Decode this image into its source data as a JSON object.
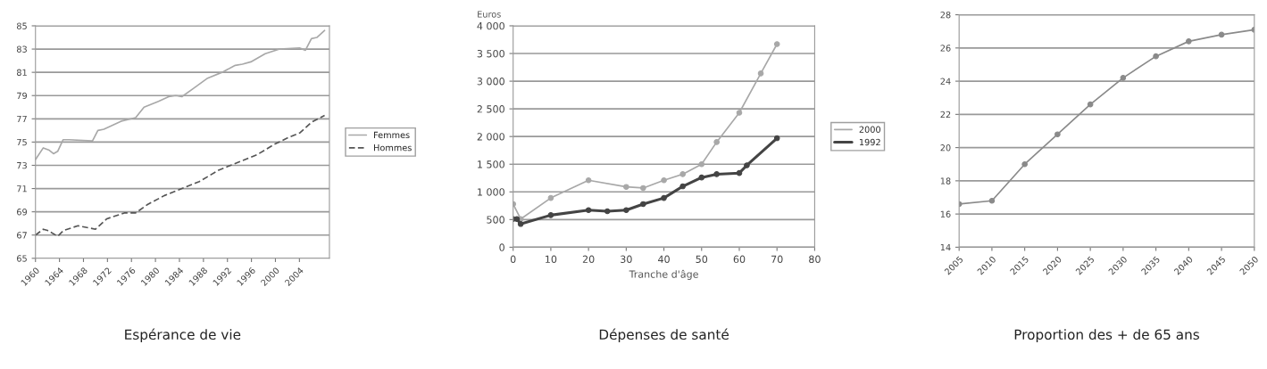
{
  "chart_data": [
    {
      "type": "line",
      "title": "Espérance de vie",
      "xlim": [
        1960,
        2009
      ],
      "ylim": [
        65,
        85
      ],
      "xticks": [
        1960,
        1964,
        1968,
        1972,
        1976,
        1980,
        1984,
        1988,
        1992,
        1996,
        2000,
        2004
      ],
      "yticks": [
        65,
        67,
        69,
        71,
        73,
        75,
        77,
        79,
        81,
        83,
        85
      ],
      "grid": "y",
      "legend": "right",
      "series": [
        {
          "name": "Femmes",
          "color": "#a8a8a8",
          "line_style": "solid",
          "x": [
            1960,
            1961.3,
            1962.3,
            1963,
            1963.7,
            1964.6,
            1965.6,
            1969.5,
            1970.4,
            1971.4,
            1974.3,
            1976.7,
            1978.1,
            1980.5,
            1982.2,
            1983.4,
            1984.4,
            1986.3,
            1988.7,
            1991.1,
            1993.3,
            1994.5,
            1995.9,
            1998.3,
            2000.7,
            2004,
            2005,
            2006,
            2006.9,
            2008.2
          ],
          "values": [
            73.5,
            74.5,
            74.3,
            74.0,
            74.2,
            75.2,
            75.2,
            75.1,
            76.0,
            76.1,
            76.8,
            77.1,
            78.0,
            78.5,
            78.9,
            79.0,
            78.9,
            79.6,
            80.5,
            81.0,
            81.6,
            81.7,
            81.9,
            82.6,
            83.0,
            83.1,
            82.9,
            83.9,
            84.0,
            84.6
          ]
        },
        {
          "name": "Hommes",
          "color": "#555555",
          "line_style": "dashed",
          "x": [
            1960,
            1961.3,
            1962,
            1963.7,
            1964.7,
            1967.1,
            1970,
            1971.9,
            1974.8,
            1976.7,
            1978.6,
            1981.5,
            1984.9,
            1987.3,
            1990.6,
            1994,
            1996.9,
            1999.8,
            2002.2,
            2004.1,
            2006,
            2008.2
          ],
          "values": [
            67.0,
            67.5,
            67.4,
            66.9,
            67.4,
            67.8,
            67.5,
            68.4,
            68.9,
            68.9,
            69.6,
            70.4,
            71.1,
            71.6,
            72.6,
            73.3,
            73.9,
            74.8,
            75.4,
            75.8,
            76.7,
            77.3
          ]
        }
      ]
    },
    {
      "type": "line",
      "title": "Dépenses de santé",
      "xlabel": "Tranche d'âge",
      "ylabel": "Euros",
      "xlim": [
        0,
        80
      ],
      "ylim": [
        0,
        4000
      ],
      "xticks": [
        0,
        10,
        20,
        30,
        40,
        50,
        60,
        70,
        80
      ],
      "yticks": [
        0,
        500,
        {
          "value": 1000,
          "label": "1 000"
        },
        {
          "value": 1500,
          "label": "1 500"
        },
        {
          "value": 2000,
          "label": "2 000"
        },
        {
          "value": 2500,
          "label": "2 500"
        },
        {
          "value": 3000,
          "label": "3 000"
        },
        {
          "value": 3500,
          "label": "3 500"
        },
        {
          "value": 4000,
          "label": "4 000"
        }
      ],
      "grid": "y",
      "legend": "right",
      "marker": "circle",
      "series": [
        {
          "name": "2000",
          "color": "#a8a8a8",
          "line_style": "solid",
          "x": [
            0,
            2,
            10,
            20,
            30,
            34.5,
            40,
            45,
            50,
            54,
            60,
            65.7,
            70
          ],
          "values": [
            780,
            510,
            890,
            1210,
            1090,
            1070,
            1210,
            1320,
            1500,
            1900,
            2430,
            3140,
            3670
          ]
        },
        {
          "name": "1992",
          "color": "#444444",
          "line_style": "solid",
          "x": [
            0,
            1,
            2,
            10,
            20,
            25,
            30,
            34.5,
            40,
            45,
            50,
            54,
            60,
            62,
            70
          ],
          "values": [
            510,
            510,
            420,
            580,
            670,
            650,
            670,
            780,
            890,
            1100,
            1260,
            1320,
            1340,
            1480,
            1970
          ]
        }
      ]
    },
    {
      "type": "line",
      "title": "Proportion des + de 65 ans",
      "xlim": [
        2005,
        2050
      ],
      "ylim": [
        14,
        28
      ],
      "xticks": [
        2005,
        2010,
        2015,
        2020,
        2025,
        2030,
        2035,
        2040,
        2045,
        2050
      ],
      "yticks": [
        14,
        16,
        18,
        20,
        22,
        24,
        26,
        28
      ],
      "grid": "y",
      "marker": "circle",
      "series": [
        {
          "color": "#8a8a8a",
          "line_style": "solid",
          "x": [
            2005,
            2010,
            2015,
            2020,
            2025,
            2030,
            2035,
            2040,
            2045,
            2050
          ],
          "values": [
            16.6,
            16.8,
            19.0,
            20.8,
            22.6,
            24.2,
            25.5,
            26.4,
            26.8,
            27.1
          ]
        }
      ]
    }
  ]
}
